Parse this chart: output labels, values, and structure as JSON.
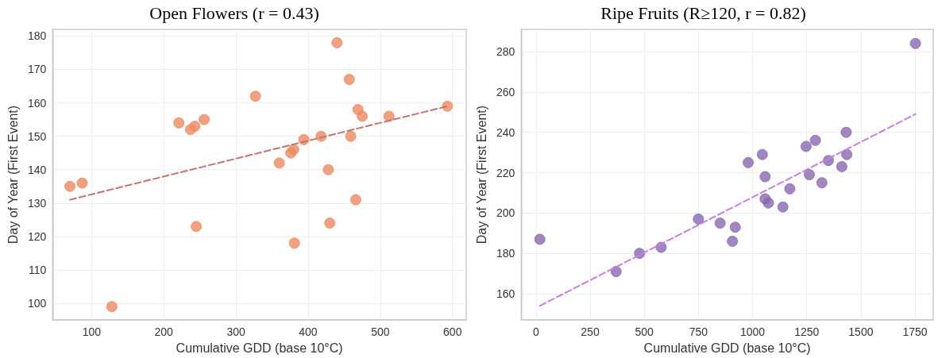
{
  "chart_data": [
    {
      "type": "scatter",
      "title": "Open Flowers (r = 0.43)",
      "xlabel": "Cumulative GDD (base 10°C)",
      "ylabel": "Day of Year (First Event)",
      "xlim": [
        46,
        619
      ],
      "xticks": [
        100,
        200,
        300,
        400,
        500,
        600
      ],
      "ylim": [
        95,
        182
      ],
      "yticks": [
        100,
        110,
        120,
        130,
        140,
        150,
        160,
        170,
        180
      ],
      "grid": true,
      "series": [
        {
          "marker": "circle",
          "color": "#ee8a60",
          "x": [
            70,
            86,
            87,
            128,
            221,
            237,
            243,
            245,
            256,
            327,
            360,
            376,
            380,
            381,
            394,
            418,
            428,
            430,
            440,
            457,
            459,
            466,
            469,
            475,
            512,
            593
          ],
          "values": [
            135,
            null,
            136,
            99,
            154,
            152,
            153,
            123,
            155,
            162,
            142,
            145,
            146,
            118,
            149,
            150,
            140,
            124,
            178,
            167,
            150,
            131,
            158,
            156,
            156,
            159
          ]
        },
        {
          "type": "line",
          "color": "#c0756f",
          "line_style": "dashed",
          "x": [
            70,
            593
          ],
          "values": [
            131,
            159
          ]
        }
      ]
    },
    {
      "type": "scatter",
      "title": "Ripe Fruits (R≥120, r = 0.82)",
      "xlabel": "Cumulative GDD (base 10°C)",
      "ylabel": "Day of Year (First Event)",
      "xlim": [
        -68,
        1834
      ],
      "xticks": [
        0,
        250,
        500,
        750,
        1000,
        1250,
        1500,
        1750
      ],
      "ylim": [
        147,
        291
      ],
      "yticks": [
        160,
        180,
        200,
        220,
        240,
        260,
        280
      ],
      "grid": true,
      "series": [
        {
          "marker": "circle",
          "color": "#8a68b0",
          "x": [
            18,
            370,
            478,
            578,
            579,
            750,
            850,
            907,
            920,
            980,
            1045,
            1058,
            1058,
            1073,
            1140,
            1172,
            1247,
            1262,
            1290,
            1320,
            1350,
            1412,
            1432,
            1435,
            1752
          ],
          "values": [
            187,
            171,
            180,
            183,
            null,
            197,
            195,
            186,
            193,
            225,
            229,
            218,
            207,
            205,
            203,
            212,
            233,
            219,
            236,
            215,
            226,
            223,
            240,
            229,
            284
          ]
        },
        {
          "type": "line",
          "color": "#c77dea",
          "line_style": "dashed",
          "x": [
            18,
            1752
          ],
          "values": [
            154,
            249
          ]
        }
      ]
    }
  ]
}
